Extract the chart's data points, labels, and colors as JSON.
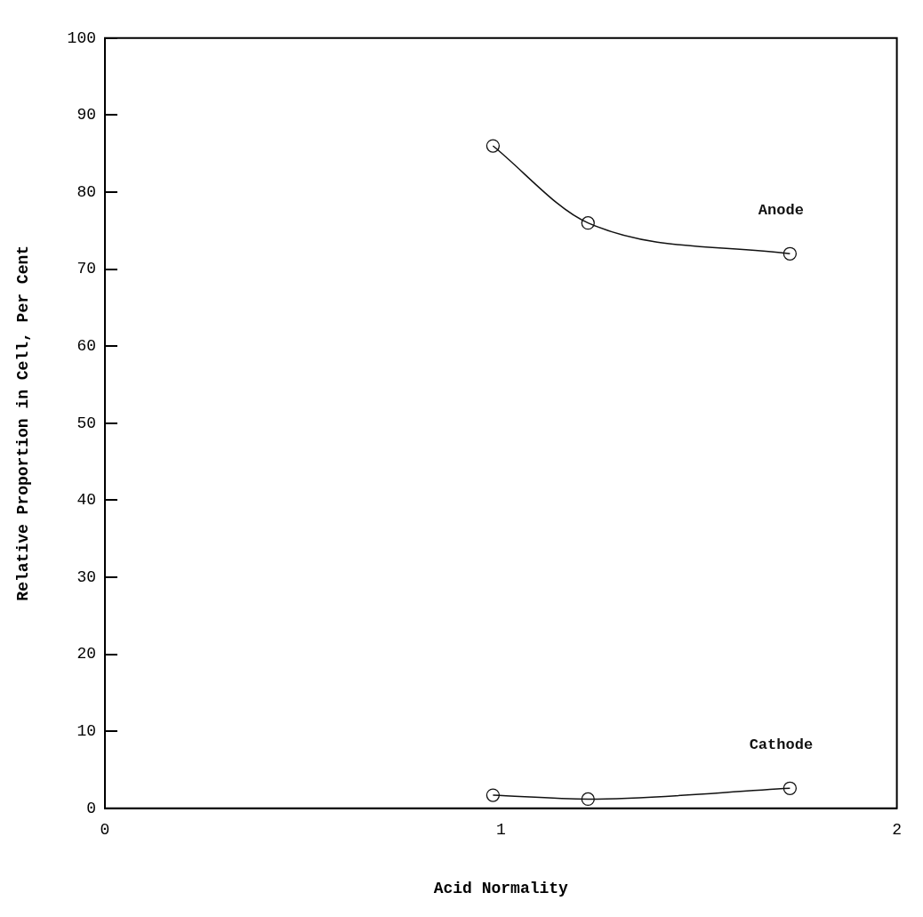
{
  "chart_data": {
    "type": "line",
    "xlabel": "Acid Normality",
    "ylabel": "Relative Proportion in Cell, Per Cent",
    "xlim": [
      0,
      2
    ],
    "xticks": [
      0,
      1,
      2
    ],
    "ylim": [
      0,
      100
    ],
    "yticks": [
      0,
      10,
      20,
      30,
      40,
      50,
      60,
      70,
      80,
      90,
      100
    ],
    "grid": false,
    "legend": false,
    "marker": "circle",
    "line_style": "solid",
    "series": [
      {
        "name": "Anode",
        "color": "#111111",
        "x": [
          0.98,
          1.22,
          1.73
        ],
        "values": [
          86,
          76,
          72
        ]
      },
      {
        "name": "Cathode",
        "color": "#111111",
        "x": [
          0.98,
          1.22,
          1.73
        ],
        "values": [
          1.7,
          1.2,
          2.6
        ]
      }
    ]
  }
}
